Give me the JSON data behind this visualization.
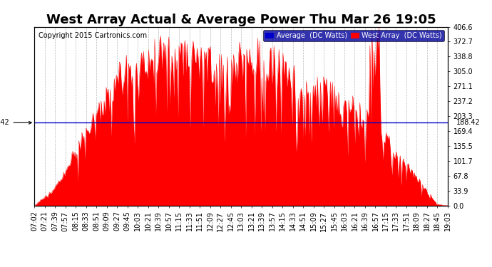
{
  "title": "West Array Actual & Average Power Thu Mar 26 19:05",
  "copyright": "Copyright 2015 Cartronics.com",
  "average_value": 188.42,
  "y_max": 406.6,
  "y_min": 0.0,
  "y_ticks": [
    0.0,
    33.9,
    67.8,
    101.7,
    135.5,
    169.4,
    203.3,
    237.2,
    271.1,
    305.0,
    338.8,
    372.7,
    406.6
  ],
  "background_color": "#ffffff",
  "fill_color": "#ff0000",
  "line_color": "#0000cc",
  "grid_color": "#999999",
  "legend_avg_color": "#0000cc",
  "legend_west_color": "#ff0000",
  "x_labels": [
    "07:02",
    "07:21",
    "07:39",
    "07:57",
    "08:15",
    "08:33",
    "08:51",
    "09:09",
    "09:27",
    "09:45",
    "10:03",
    "10:21",
    "10:39",
    "10:57",
    "11:15",
    "11:33",
    "11:51",
    "12:09",
    "12:27",
    "12:45",
    "13:03",
    "13:21",
    "13:39",
    "13:57",
    "14:15",
    "14:33",
    "14:51",
    "15:09",
    "15:27",
    "15:45",
    "16:03",
    "16:21",
    "16:39",
    "16:57",
    "17:15",
    "17:33",
    "17:51",
    "18:09",
    "18:27",
    "18:45",
    "19:03"
  ],
  "title_fontsize": 13,
  "axis_fontsize": 7,
  "copyright_fontsize": 7
}
